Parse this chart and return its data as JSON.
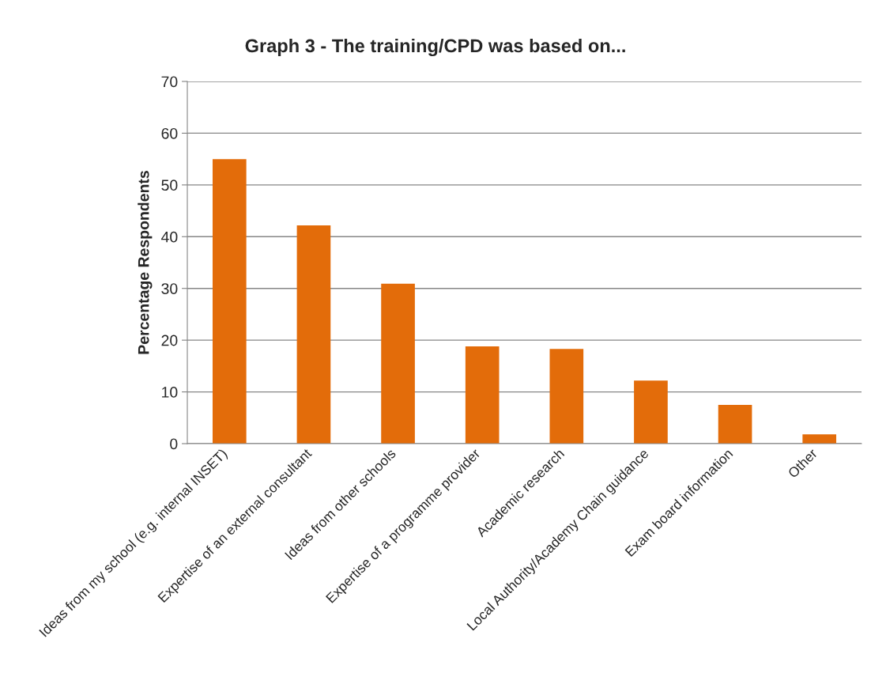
{
  "chart_data": {
    "type": "bar",
    "title": "Graph 3 - The training/CPD was based on...",
    "ylabel": "Percentage Respondents",
    "categories": [
      "Ideas from my school (e.g. internal INSET)",
      "Expertise of an external consultant",
      "Ideas from other schools",
      "Expertise of a programme provider",
      "Academic research",
      "Local Authority/Academy Chain guidance",
      "Exam board information",
      "Other"
    ],
    "values": [
      55,
      42.2,
      30.9,
      18.8,
      18.3,
      12.2,
      7.5,
      1.8
    ],
    "color": "#e36c0a",
    "ylim": [
      0,
      70
    ],
    "yticks": [
      0,
      10,
      20,
      30,
      40,
      50,
      60,
      70
    ],
    "grid": "y",
    "legend": false
  }
}
